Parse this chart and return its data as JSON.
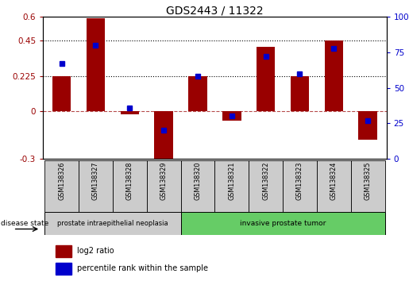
{
  "title": "GDS2443 / 11322",
  "categories": [
    "GSM138326",
    "GSM138327",
    "GSM138328",
    "GSM138329",
    "GSM138320",
    "GSM138321",
    "GSM138322",
    "GSM138323",
    "GSM138324",
    "GSM138325"
  ],
  "log2_ratio": [
    0.225,
    0.59,
    -0.02,
    -0.33,
    0.225,
    -0.06,
    0.41,
    0.225,
    0.45,
    -0.18
  ],
  "percentile_rank": [
    67,
    80,
    36,
    20,
    58,
    30,
    72,
    60,
    78,
    27
  ],
  "bar_color": "#990000",
  "dot_color": "#0000cc",
  "ylim_left": [
    -0.3,
    0.6
  ],
  "ylim_right": [
    0,
    100
  ],
  "hlines": [
    0.225,
    0.45
  ],
  "group1_label": "prostate intraepithelial neoplasia",
  "group2_label": "invasive prostate tumor",
  "group1_color": "#cccccc",
  "group2_color": "#66cc66",
  "disease_state_label": "disease state",
  "legend_bar_label": "log2 ratio",
  "legend_dot_label": "percentile rank within the sample",
  "bar_width": 0.55,
  "box_color": "#cccccc"
}
